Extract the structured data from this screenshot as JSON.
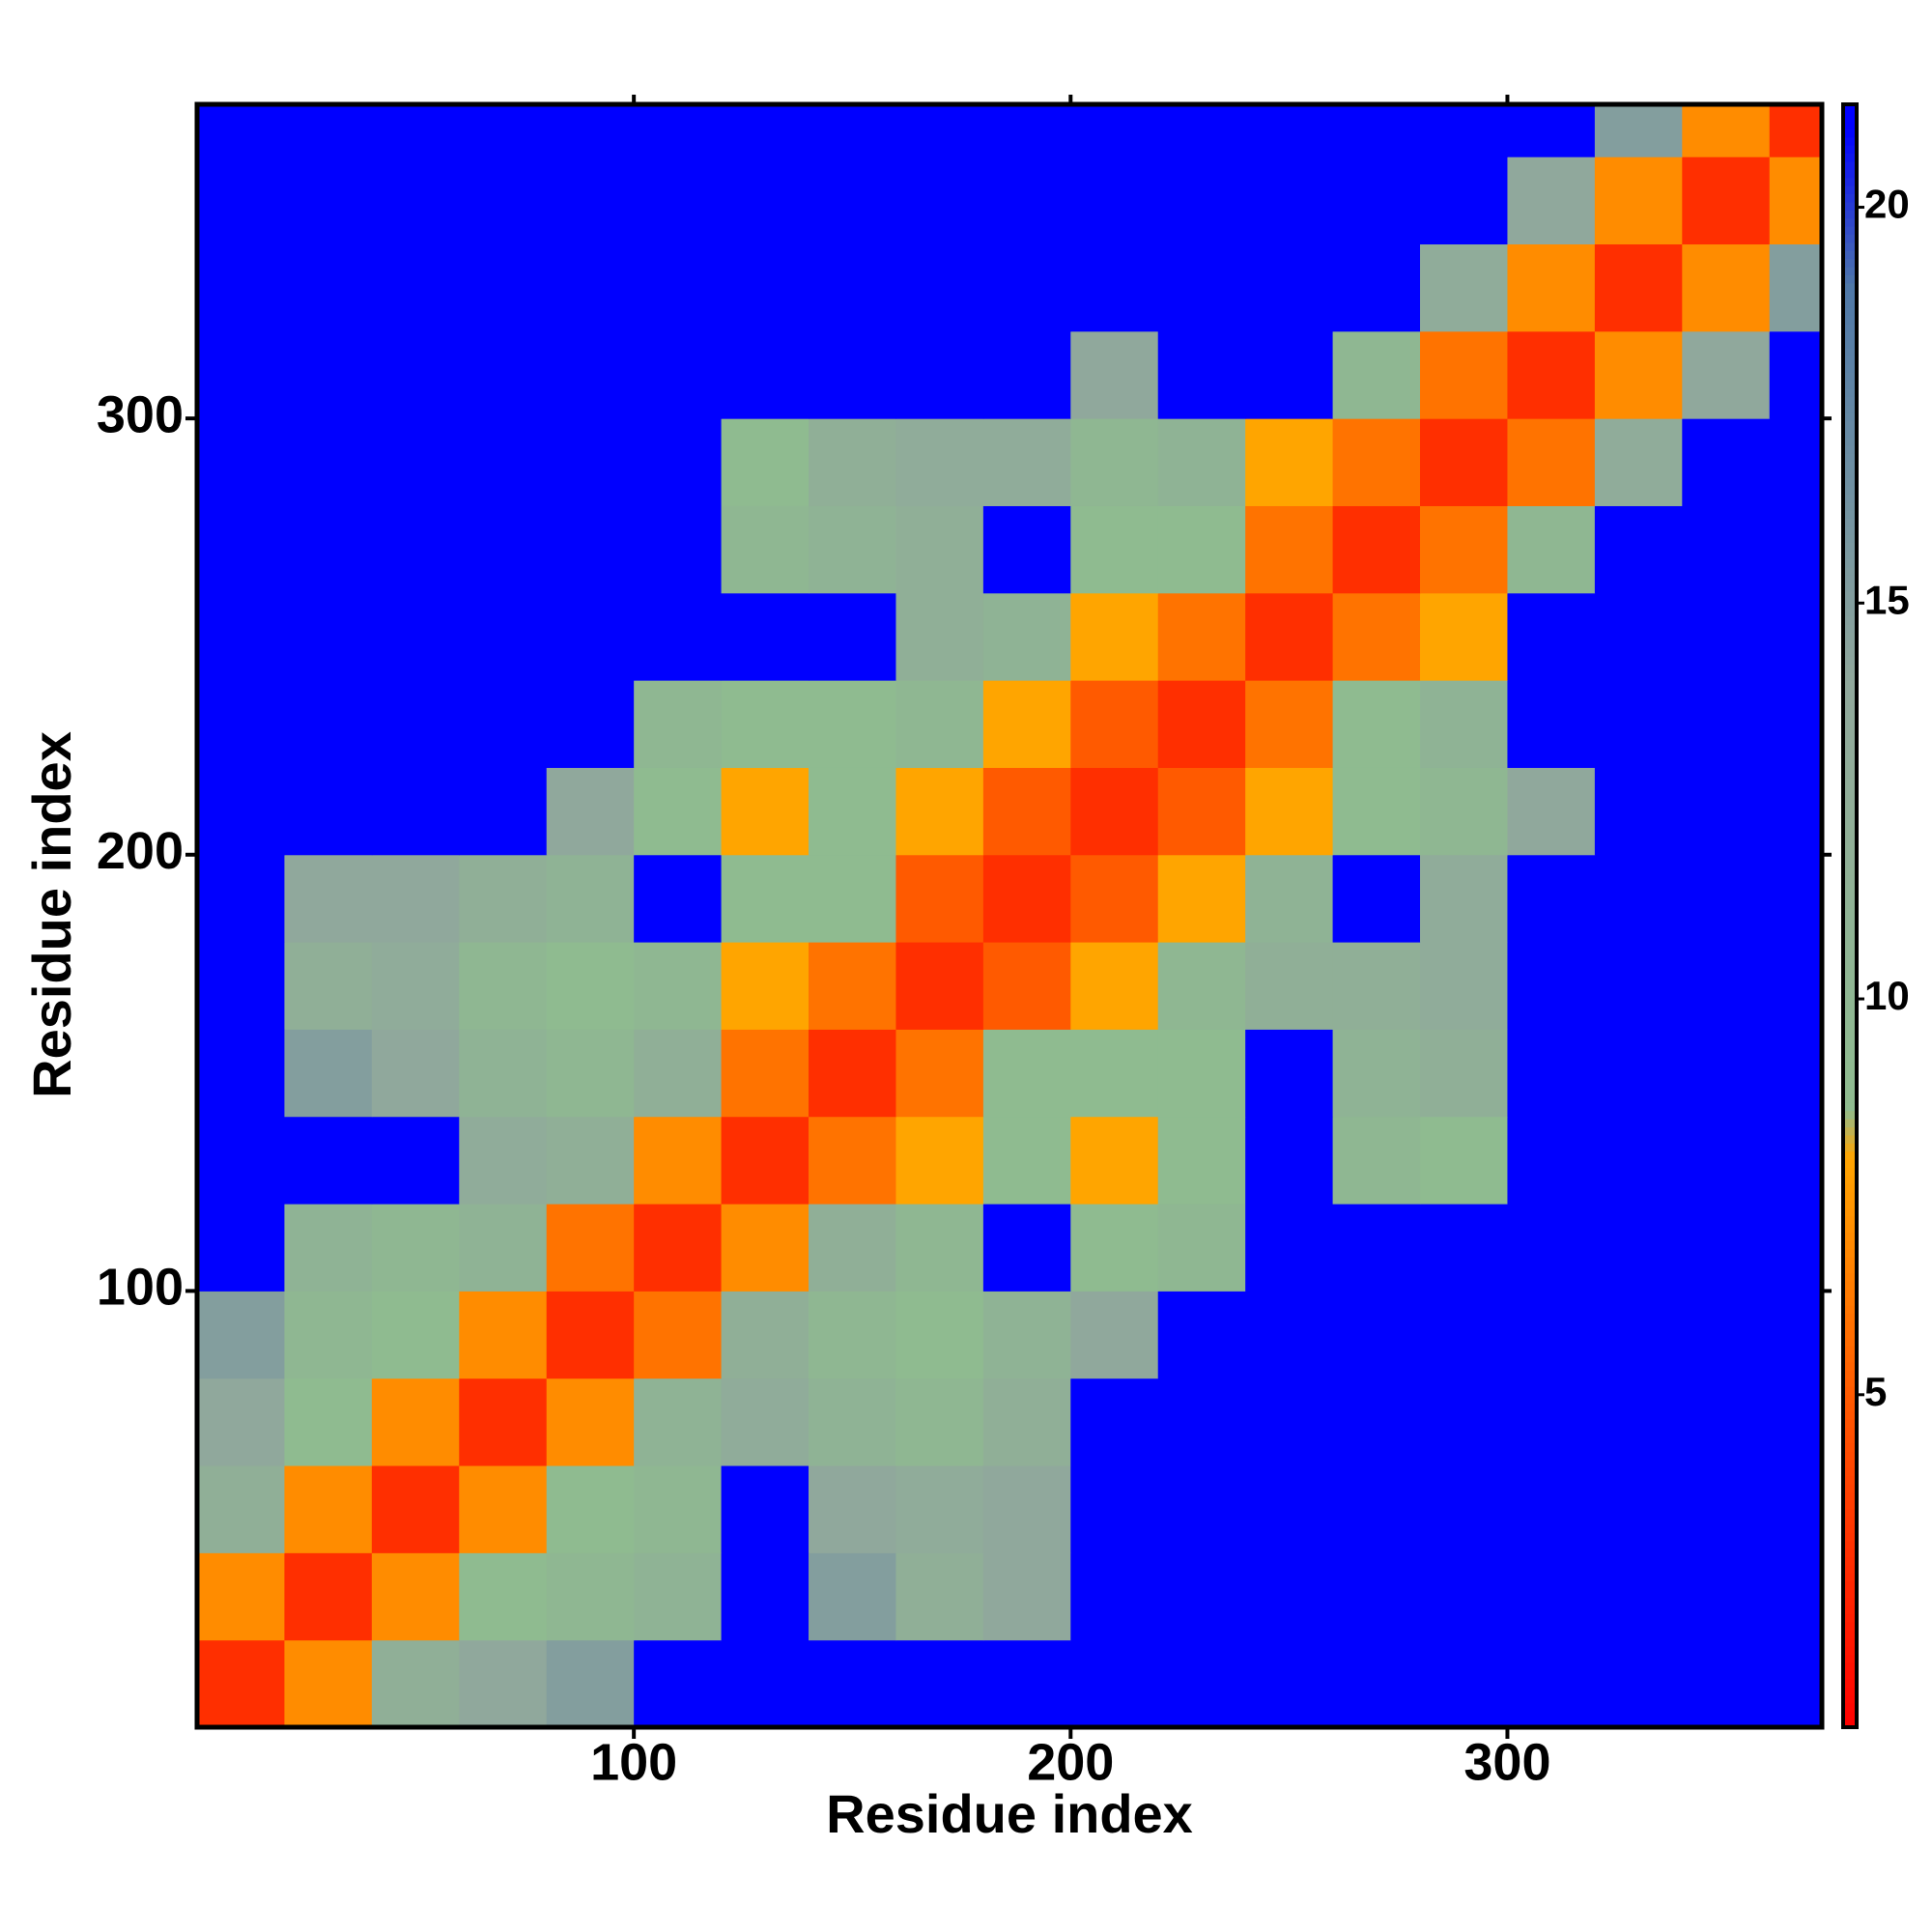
{
  "chart_data": {
    "type": "heatmap",
    "x_label": "Residue index",
    "y_label": "Residue index",
    "xlim": [
      0,
      372
    ],
    "ylim": [
      0,
      372
    ],
    "xticks": [
      100,
      200,
      300
    ],
    "yticks": [
      100,
      200,
      300
    ],
    "bins": [
      0,
      20,
      40,
      60,
      80,
      100,
      120,
      140,
      160,
      180,
      200,
      220,
      240,
      260,
      280,
      300,
      320,
      340,
      360,
      372
    ],
    "z": [
      [
        3,
        7,
        12,
        14,
        15,
        21,
        21,
        21,
        21,
        21,
        21,
        21,
        21,
        21,
        21,
        21,
        21,
        21,
        21
      ],
      [
        7,
        3,
        7,
        9,
        10,
        11,
        21,
        15,
        12,
        14,
        21,
        21,
        21,
        21,
        21,
        21,
        21,
        21,
        21
      ],
      [
        12,
        7,
        3,
        7,
        9,
        10,
        21,
        14,
        13,
        14,
        21,
        21,
        21,
        21,
        21,
        21,
        21,
        21,
        21
      ],
      [
        14,
        9,
        7,
        3,
        7,
        11,
        13,
        11,
        10,
        12,
        21,
        21,
        21,
        21,
        21,
        21,
        21,
        21,
        21
      ],
      [
        15,
        10,
        9,
        7,
        3,
        6,
        12,
        10,
        9,
        11,
        14,
        21,
        21,
        21,
        21,
        21,
        21,
        21,
        21
      ],
      [
        21,
        11,
        10,
        11,
        6,
        3,
        7,
        12,
        10,
        21,
        9,
        10,
        21,
        21,
        21,
        21,
        21,
        21,
        21
      ],
      [
        21,
        21,
        21,
        13,
        12,
        7,
        3,
        6,
        8,
        9,
        8,
        9,
        21,
        10,
        9,
        21,
        21,
        21,
        21
      ],
      [
        21,
        15,
        14,
        11,
        10,
        12,
        6,
        3,
        6,
        9,
        9,
        9,
        21,
        11,
        12,
        21,
        21,
        21,
        21
      ],
      [
        21,
        12,
        13,
        10,
        9,
        10,
        8,
        6,
        3,
        5,
        8,
        10,
        12,
        12,
        13,
        21,
        21,
        21,
        21
      ],
      [
        21,
        14,
        14,
        12,
        11,
        21,
        9,
        9,
        5,
        3,
        5,
        8,
        11,
        21,
        13,
        21,
        21,
        21,
        21
      ],
      [
        21,
        21,
        21,
        21,
        14,
        9,
        8,
        9,
        8,
        5,
        3,
        5,
        8,
        9,
        10,
        14,
        21,
        21,
        21
      ],
      [
        21,
        21,
        21,
        21,
        21,
        10,
        9,
        9,
        10,
        8,
        5,
        3,
        6,
        9,
        11,
        21,
        21,
        21,
        21
      ],
      [
        21,
        21,
        21,
        21,
        21,
        21,
        21,
        21,
        12,
        11,
        8,
        6,
        3,
        6,
        8,
        21,
        21,
        21,
        21
      ],
      [
        21,
        21,
        21,
        21,
        21,
        21,
        10,
        11,
        12,
        21,
        9,
        9,
        6,
        3,
        6,
        10,
        21,
        21,
        21
      ],
      [
        21,
        21,
        21,
        21,
        21,
        21,
        9,
        12,
        13,
        13,
        10,
        11,
        8,
        6,
        3,
        6,
        13,
        21,
        21
      ],
      [
        21,
        21,
        21,
        21,
        21,
        21,
        21,
        21,
        21,
        21,
        14,
        21,
        21,
        10,
        6,
        3,
        7,
        14,
        21
      ],
      [
        21,
        21,
        21,
        21,
        21,
        21,
        21,
        21,
        21,
        21,
        21,
        21,
        21,
        21,
        13,
        7,
        3,
        7,
        15
      ],
      [
        21,
        21,
        21,
        21,
        21,
        21,
        21,
        21,
        21,
        21,
        21,
        21,
        21,
        21,
        21,
        14,
        7,
        3,
        7
      ],
      [
        21,
        21,
        21,
        21,
        21,
        21,
        21,
        21,
        21,
        21,
        21,
        21,
        21,
        21,
        21,
        21,
        15,
        7,
        3
      ]
    ],
    "colorbar": {
      "lim": [
        0.8,
        21.3
      ],
      "ticks": [
        5,
        10,
        15,
        20
      ]
    },
    "colorscale": [
      [
        0.8,
        "#ff0000"
      ],
      [
        5,
        "#ff5a00"
      ],
      [
        8,
        "#ffa500"
      ],
      [
        8.6,
        "#8fbc8f"
      ],
      [
        14,
        "#90a89c"
      ],
      [
        19,
        "#4f78a8"
      ],
      [
        21,
        "#0000ff"
      ],
      [
        21.3,
        "#0000ff"
      ]
    ]
  }
}
